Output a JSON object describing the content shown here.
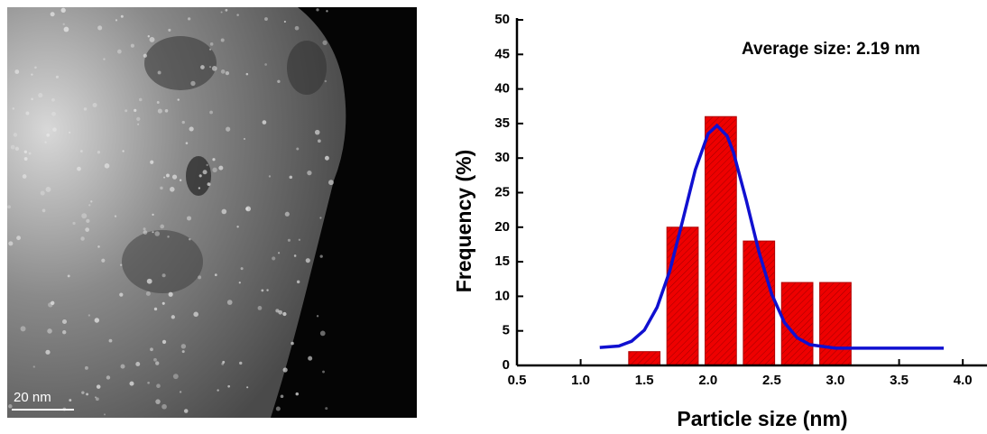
{
  "image": {
    "scale_bar": "20 nm"
  },
  "chart_data": {
    "type": "bar",
    "annotation": "Average size: 2.19 nm",
    "xlabel": "Particle size (nm)",
    "ylabel": "Frequency (%)",
    "x": [
      1.5,
      1.8,
      2.1,
      2.4,
      2.7,
      3.0
    ],
    "values": [
      2,
      20,
      36,
      18,
      12,
      12
    ],
    "color": "#ee0000",
    "fit": {
      "type": "line",
      "color": "#1010d0",
      "x": [
        1.15,
        1.3,
        1.4,
        1.5,
        1.6,
        1.7,
        1.8,
        1.9,
        2.0,
        2.07,
        2.15,
        2.2,
        2.3,
        2.4,
        2.5,
        2.6,
        2.7,
        2.8,
        3.0,
        3.85
      ],
      "values": [
        2.6,
        2.8,
        3.5,
        5.1,
        8.4,
        13.7,
        20.9,
        28.3,
        33.5,
        34.7,
        33.2,
        30.8,
        23.9,
        16.4,
        10.3,
        6.2,
        4.0,
        3.0,
        2.5,
        2.5
      ]
    },
    "xlim": [
      0.5,
      4.19
    ],
    "ylim": [
      0,
      50
    ],
    "xticks": [
      0.5,
      {
        "value": 1,
        "label": "1.0"
      },
      1.5,
      {
        "value": 2,
        "label": "2.0"
      },
      2.5,
      {
        "value": 3,
        "label": "3.0"
      },
      3.5,
      {
        "value": 4,
        "label": "4.0"
      }
    ],
    "yticks": [
      0,
      5,
      10,
      15,
      20,
      25,
      30,
      35,
      40,
      45,
      50
    ]
  }
}
